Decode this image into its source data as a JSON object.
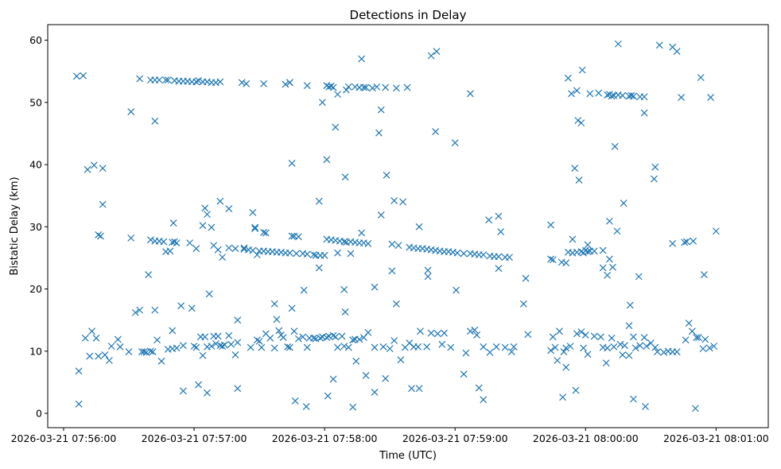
{
  "chart_data": {
    "type": "scatter",
    "title": "Detections in Delay",
    "xlabel": "Time (UTC)",
    "ylabel": "Bistatic Delay (km)",
    "x_offset_note": "x values in seconds after 2026-03-21 07:56:00",
    "xlim": [
      -7.3,
      324
    ],
    "ylim": [
      -2.3,
      62.5
    ],
    "grid": false,
    "marker": "x",
    "color": "#1f77b4",
    "xticks": [
      {
        "value": 0,
        "label": "2026-03-21 07:56:00"
      },
      {
        "value": 60,
        "label": "2026-03-21 07:57:00"
      },
      {
        "value": 120,
        "label": "2026-03-21 07:58:00"
      },
      {
        "value": 180,
        "label": "2026-03-21 07:59:00"
      },
      {
        "value": 240,
        "label": "2026-03-21 08:00:00"
      },
      {
        "value": 300,
        "label": "2026-03-21 08:01:00"
      }
    ],
    "yticks": [
      {
        "value": 0,
        "label": "0"
      },
      {
        "value": 10,
        "label": "10"
      },
      {
        "value": 20,
        "label": "20"
      },
      {
        "value": 30,
        "label": "30"
      },
      {
        "value": 40,
        "label": "40"
      },
      {
        "value": 50,
        "label": "50"
      },
      {
        "value": 60,
        "label": "60"
      }
    ],
    "points": [
      [
        6,
        54.2
      ],
      [
        9,
        54.3
      ],
      [
        7,
        6.8
      ],
      [
        7,
        1.5
      ],
      [
        11,
        39.2
      ],
      [
        14,
        39.9
      ],
      [
        18,
        39.4
      ],
      [
        18,
        33.6
      ],
      [
        16,
        28.7
      ],
      [
        17,
        28.5
      ],
      [
        10,
        12.1
      ],
      [
        12,
        9.2
      ],
      [
        13,
        13.2
      ],
      [
        15,
        12.1
      ],
      [
        16,
        9.2
      ],
      [
        19,
        9.4
      ],
      [
        21,
        8.5
      ],
      [
        22,
        10.8
      ],
      [
        25,
        11.9
      ],
      [
        26,
        10.7
      ],
      [
        30,
        9.9
      ],
      [
        31,
        48.5
      ],
      [
        31,
        28.2
      ],
      [
        33,
        16.2
      ],
      [
        35,
        53.8
      ],
      [
        35,
        16.6
      ],
      [
        37,
        9.9
      ],
      [
        39,
        22.3
      ],
      [
        42,
        47
      ],
      [
        42,
        16.6
      ],
      [
        45,
        8.4
      ],
      [
        50,
        13.3
      ],
      [
        50.5,
        30.6
      ],
      [
        54,
        17.3
      ],
      [
        55,
        3.6
      ],
      [
        59,
        16.9
      ],
      [
        61,
        26.5
      ],
      [
        62,
        4.6
      ],
      [
        64,
        30.2
      ],
      [
        65,
        33
      ],
      [
        66,
        32
      ],
      [
        66,
        3.3
      ],
      [
        67,
        19.2
      ],
      [
        68,
        29.9
      ],
      [
        72,
        34.1
      ],
      [
        76,
        32.9
      ],
      [
        80,
        15
      ],
      [
        80,
        4
      ],
      [
        87,
        32.3
      ],
      [
        88,
        29.9
      ],
      [
        92,
        29.1
      ],
      [
        92,
        53
      ],
      [
        97,
        17.6
      ],
      [
        98,
        15.1
      ],
      [
        104,
        53.2
      ],
      [
        105,
        40.2
      ],
      [
        105,
        16.9
      ],
      [
        106.5,
        2
      ],
      [
        110.5,
        19.8
      ],
      [
        111.6,
        1.1
      ],
      [
        112,
        52.7
      ],
      [
        117.5,
        34.1
      ],
      [
        117.5,
        23.4
      ],
      [
        119,
        50
      ],
      [
        121,
        40.8
      ],
      [
        121.5,
        2.8
      ],
      [
        124,
        5.5
      ],
      [
        125,
        46
      ],
      [
        129.5,
        38
      ],
      [
        129.5,
        16.3
      ],
      [
        129,
        19.9
      ],
      [
        133,
        1
      ],
      [
        134.5,
        8.4
      ],
      [
        137,
        57
      ],
      [
        139,
        6.1
      ],
      [
        143,
        3.4
      ],
      [
        143,
        20.3
      ],
      [
        145,
        45.1
      ],
      [
        146,
        31.9
      ],
      [
        146,
        48.8
      ],
      [
        148.5,
        38.3
      ],
      [
        148,
        5.6
      ],
      [
        151,
        22.9
      ],
      [
        152,
        34.2
      ],
      [
        153,
        17.6
      ],
      [
        156,
        34
      ],
      [
        160,
        4
      ],
      [
        163.5,
        4
      ],
      [
        163.5,
        30
      ],
      [
        167.5,
        22
      ],
      [
        167.5,
        23
      ],
      [
        169,
        57.5
      ],
      [
        171.5,
        58.2
      ],
      [
        171,
        45.3
      ],
      [
        180,
        43.5
      ],
      [
        180.5,
        19.8
      ],
      [
        184,
        6.3
      ],
      [
        187,
        51.4
      ],
      [
        187,
        13.2
      ],
      [
        191,
        4.1
      ],
      [
        193,
        2.2
      ],
      [
        195.5,
        31.1
      ],
      [
        200,
        31.7
      ],
      [
        200,
        23.3
      ],
      [
        201,
        29.2
      ],
      [
        211.5,
        17.6
      ],
      [
        212.5,
        21.7
      ],
      [
        213.5,
        12.7
      ],
      [
        224,
        30.3
      ],
      [
        229.5,
        2.6
      ],
      [
        232,
        53.9
      ],
      [
        233.5,
        51.4
      ],
      [
        234,
        28
      ],
      [
        235,
        39.4
      ],
      [
        235.5,
        3.7
      ],
      [
        236.5,
        47.1
      ],
      [
        237,
        37.5
      ],
      [
        238,
        46.7
      ],
      [
        238.5,
        55.2
      ],
      [
        241,
        27.1
      ],
      [
        248,
        23.4
      ],
      [
        249.5,
        8.1
      ],
      [
        251,
        30.9
      ],
      [
        252.5,
        23.5
      ],
      [
        253.5,
        42.9
      ],
      [
        254.5,
        29.3
      ],
      [
        255,
        59.4
      ],
      [
        257.5,
        33.8
      ],
      [
        260,
        14.1
      ],
      [
        260.5,
        17.4
      ],
      [
        262,
        2.3
      ],
      [
        264.5,
        22
      ],
      [
        267.5,
        1.1
      ],
      [
        267,
        48.3
      ],
      [
        271.5,
        37.7
      ],
      [
        272,
        39.6
      ],
      [
        274,
        59.2
      ],
      [
        280,
        27.3
      ],
      [
        280,
        58.9
      ],
      [
        282,
        58.2
      ],
      [
        284,
        50.8
      ],
      [
        285.5,
        27.5
      ],
      [
        286.5,
        27.6
      ],
      [
        287.5,
        14.5
      ],
      [
        289.5,
        27.7
      ],
      [
        290.5,
        0.8
      ],
      [
        293,
        54
      ],
      [
        294.5,
        22.3
      ],
      [
        297.5,
        50.8
      ],
      [
        300,
        29.3
      ],
      [
        40,
        53.6
      ],
      [
        42,
        53.6
      ],
      [
        44,
        53.6
      ],
      [
        47,
        53.6
      ],
      [
        48,
        53.6
      ],
      [
        51,
        53.5
      ],
      [
        53,
        53.4
      ],
      [
        55,
        53.4
      ],
      [
        57,
        53.4
      ],
      [
        59,
        53.3
      ],
      [
        61,
        53.3
      ],
      [
        62,
        53.5
      ],
      [
        64,
        53.3
      ],
      [
        66,
        53.3
      ],
      [
        68,
        53.2
      ],
      [
        70,
        53.2
      ],
      [
        72,
        53.3
      ],
      [
        82,
        53.2
      ],
      [
        84,
        53.0
      ],
      [
        102,
        52.9
      ],
      [
        104,
        53.2
      ],
      [
        121,
        52.7
      ],
      [
        122,
        52.5
      ],
      [
        123,
        52.6
      ],
      [
        124,
        52.4
      ],
      [
        126,
        51.3
      ],
      [
        130,
        52
      ],
      [
        131,
        52.5
      ],
      [
        134,
        52.5
      ],
      [
        136,
        52.4
      ],
      [
        138,
        52.4
      ],
      [
        139,
        52.4
      ],
      [
        142,
        52.3
      ],
      [
        144,
        52.5
      ],
      [
        148,
        52.4
      ],
      [
        153,
        52.3
      ],
      [
        158,
        52.4
      ],
      [
        236,
        51.9
      ],
      [
        242,
        51.4
      ],
      [
        246,
        51.5
      ],
      [
        250,
        51.2
      ],
      [
        251,
        51.3
      ],
      [
        252,
        51.0
      ],
      [
        253,
        51.1
      ],
      [
        255,
        51.2
      ],
      [
        257,
        51.1
      ],
      [
        260,
        51.0
      ],
      [
        261,
        51.1
      ],
      [
        262,
        51.0
      ],
      [
        265,
        50.9
      ],
      [
        267,
        50.9
      ],
      [
        40,
        27.9
      ],
      [
        42,
        27.7
      ],
      [
        44,
        27.7
      ],
      [
        46,
        27.6
      ],
      [
        47,
        26.0
      ],
      [
        49,
        26.1
      ],
      [
        50,
        27.5
      ],
      [
        51,
        27.6
      ],
      [
        52,
        27.4
      ],
      [
        58,
        27.4
      ],
      [
        69,
        27.0
      ],
      [
        71,
        26.3
      ],
      [
        73,
        25.1
      ],
      [
        76,
        26.6
      ],
      [
        79,
        26.5
      ],
      [
        83,
        26.4
      ],
      [
        85,
        26.3
      ],
      [
        87,
        26.2
      ],
      [
        89,
        25.5
      ],
      [
        90,
        26.1
      ],
      [
        92,
        26.1
      ],
      [
        94,
        26.0
      ],
      [
        96,
        26.0
      ],
      [
        98,
        25.9
      ],
      [
        100,
        25.9
      ],
      [
        102,
        25.8
      ],
      [
        104,
        25.8
      ],
      [
        105,
        28.5
      ],
      [
        106,
        28.5
      ],
      [
        108,
        28.4
      ],
      [
        107,
        25.7
      ],
      [
        110,
        25.7
      ],
      [
        112,
        25.6
      ],
      [
        115,
        25.5
      ],
      [
        116,
        25.4
      ],
      [
        118,
        25.4
      ],
      [
        120,
        25.4
      ],
      [
        121,
        28.0
      ],
      [
        123,
        27.9
      ],
      [
        125,
        27.8
      ],
      [
        127,
        27.7
      ],
      [
        129,
        27.6
      ],
      [
        130,
        27.5
      ],
      [
        132,
        27.6
      ],
      [
        134,
        27.5
      ],
      [
        136,
        27.4
      ],
      [
        138,
        27.4
      ],
      [
        140,
        27.3
      ],
      [
        132,
        25.7
      ],
      [
        126,
        25.8
      ],
      [
        137,
        29
      ],
      [
        159,
        26.7
      ],
      [
        161,
        26.6
      ],
      [
        163,
        26.5
      ],
      [
        165,
        26.5
      ],
      [
        167,
        26.4
      ],
      [
        169,
        26.3
      ],
      [
        171,
        26.2
      ],
      [
        173,
        26.1
      ],
      [
        175,
        26.0
      ],
      [
        177,
        26.0
      ],
      [
        179,
        25.9
      ],
      [
        181,
        25.8
      ],
      [
        184,
        25.7
      ],
      [
        187,
        25.7
      ],
      [
        189,
        25.6
      ],
      [
        191,
        25.5
      ],
      [
        193,
        25.5
      ],
      [
        196,
        25.3
      ],
      [
        198,
        25.2
      ],
      [
        200,
        25.2
      ],
      [
        203,
        25.1
      ],
      [
        205,
        25.1
      ],
      [
        151,
        27.2
      ],
      [
        154,
        27.0
      ],
      [
        88,
        29.7
      ],
      [
        93,
        29.0
      ],
      [
        83,
        26.6
      ],
      [
        224,
        24.8
      ],
      [
        229,
        24.3
      ],
      [
        231,
        24.2
      ],
      [
        232,
        25.9
      ],
      [
        234,
        25.8
      ],
      [
        236,
        25.9
      ],
      [
        238,
        26.0
      ],
      [
        239,
        25.8
      ],
      [
        240,
        26.2
      ],
      [
        241,
        26.0
      ],
      [
        242,
        26.1
      ],
      [
        244,
        26.1
      ],
      [
        248,
        26.2
      ],
      [
        250,
        22.2
      ],
      [
        251,
        24.8
      ],
      [
        225,
        24.7
      ],
      [
        36,
        9.9
      ],
      [
        38,
        9.8
      ],
      [
        40,
        10.0
      ],
      [
        41,
        9.9
      ],
      [
        43,
        11.8
      ],
      [
        48,
        10.3
      ],
      [
        50,
        10.4
      ],
      [
        52,
        10.5
      ],
      [
        55,
        10.9
      ],
      [
        60,
        10.8
      ],
      [
        61,
        10.6
      ],
      [
        63,
        12.3
      ],
      [
        64,
        9.3
      ],
      [
        65,
        12.3
      ],
      [
        66,
        10.7
      ],
      [
        68,
        10.8
      ],
      [
        69,
        12.4
      ],
      [
        70,
        11.2
      ],
      [
        71,
        12.4
      ],
      [
        72,
        10.9
      ],
      [
        73,
        10.8
      ],
      [
        74,
        11.0
      ],
      [
        76,
        12.5
      ],
      [
        77,
        11.1
      ],
      [
        79,
        9.4
      ],
      [
        80,
        11.4
      ],
      [
        86,
        10.6
      ],
      [
        89,
        11.8
      ],
      [
        90,
        11.6
      ],
      [
        91,
        10.6
      ],
      [
        93,
        12.8
      ],
      [
        95,
        12.1
      ],
      [
        97,
        10.5
      ],
      [
        99,
        13.3
      ],
      [
        100,
        12.6
      ],
      [
        101,
        12.2
      ],
      [
        103,
        10.7
      ],
      [
        104,
        10.6
      ],
      [
        106,
        13.2
      ],
      [
        108,
        12.0
      ],
      [
        110,
        12.3
      ],
      [
        112,
        10.6
      ],
      [
        113,
        12.1
      ],
      [
        115,
        12.1
      ],
      [
        116,
        12.0
      ],
      [
        118,
        12.1
      ],
      [
        119,
        12.3
      ],
      [
        121,
        12.2
      ],
      [
        122,
        12.4
      ],
      [
        124,
        12.5
      ],
      [
        125,
        12.3
      ],
      [
        126,
        10.6
      ],
      [
        128,
        12.4
      ],
      [
        129,
        10.8
      ],
      [
        131,
        10.6
      ],
      [
        133,
        11.8
      ],
      [
        134,
        11.9
      ],
      [
        136,
        11.9
      ],
      [
        138,
        12.2
      ],
      [
        140,
        13.0
      ],
      [
        143,
        10.6
      ],
      [
        147,
        10.7
      ],
      [
        150,
        10.4
      ],
      [
        152,
        11.7
      ],
      [
        155,
        8.6
      ],
      [
        157,
        10.6
      ],
      [
        159,
        11.3
      ],
      [
        161,
        10.7
      ],
      [
        163,
        10.7
      ],
      [
        164,
        13.2
      ],
      [
        167,
        10.7
      ],
      [
        169,
        12.9
      ],
      [
        172,
        12.8
      ],
      [
        174,
        11.1
      ],
      [
        175,
        12.9
      ],
      [
        178,
        10.6
      ],
      [
        185,
        9.7
      ],
      [
        189,
        13.4
      ],
      [
        190,
        12.6
      ],
      [
        193,
        10.7
      ],
      [
        196,
        9.8
      ],
      [
        199,
        10.7
      ],
      [
        203,
        10.6
      ],
      [
        206,
        9.9
      ],
      [
        207,
        10.7
      ],
      [
        225,
        12.3
      ],
      [
        226,
        10.6
      ],
      [
        228,
        13.2
      ],
      [
        230,
        9.9
      ],
      [
        231,
        10.5
      ],
      [
        233,
        10.8
      ],
      [
        236,
        12.8
      ],
      [
        238,
        13.1
      ],
      [
        239,
        10.5
      ],
      [
        240,
        12.6
      ],
      [
        244,
        12.4
      ],
      [
        247,
        12.3
      ],
      [
        248,
        10.6
      ],
      [
        250,
        10.5
      ],
      [
        252,
        12.1
      ],
      [
        253,
        10.7
      ],
      [
        256,
        11.1
      ],
      [
        257,
        9.4
      ],
      [
        258,
        10.9
      ],
      [
        260,
        9.3
      ],
      [
        262,
        12.3
      ],
      [
        263,
        10.5
      ],
      [
        265,
        10.9
      ],
      [
        267,
        12.2
      ],
      [
        268,
        10.8
      ],
      [
        270,
        11.3
      ],
      [
        272,
        10.6
      ],
      [
        273,
        9.9
      ],
      [
        276,
        9.8
      ],
      [
        278,
        10.0
      ],
      [
        280,
        9.9
      ],
      [
        282,
        9.9
      ],
      [
        286,
        11.8
      ],
      [
        289,
        13.2
      ],
      [
        291,
        12.2
      ],
      [
        292,
        12.2
      ],
      [
        294,
        10.4
      ],
      [
        295,
        11.9
      ],
      [
        297,
        10.5
      ],
      [
        299,
        10.8
      ],
      [
        231,
        7.4
      ],
      [
        227,
        8.5
      ],
      [
        224,
        10.1
      ],
      [
        241,
        9.5
      ]
    ]
  }
}
